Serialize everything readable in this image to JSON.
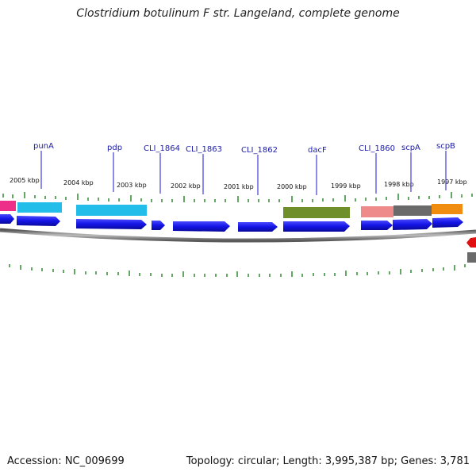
{
  "title": "Clostridium botulinum F str. Langeland, complete genome",
  "footer": {
    "accession": "Accession: NC_009699",
    "summary": "Topology: circular; Length: 3,995,387 bp; Genes: 3,781"
  },
  "colors": {
    "cds": "#1010e0",
    "cds_light": "#2b2bff",
    "tick": "#2e8b2e",
    "backbone": "#888888",
    "label_line": "#1a1ad0"
  },
  "scale_labels": [
    "2005 kbp",
    "2004 kbp",
    "2003 kbp",
    "2002 kbp",
    "2001 kbp",
    "2000 kbp",
    "1999 kbp",
    "1998 kbp",
    "1997 kbp"
  ],
  "gene_labels": [
    "punA",
    "pdp",
    "CLI_1864",
    "CLI_1863",
    "CLI_1862",
    "dacF",
    "CLI_1860",
    "scpA",
    "scpB"
  ],
  "features": [
    {
      "kind": "magenta-feature",
      "color": "#ee2f8a"
    },
    {
      "kind": "cyan-feature",
      "color": "#22bde8"
    },
    {
      "kind": "cyan-feature",
      "color": "#22bde8"
    },
    {
      "kind": "olive-feature",
      "color": "#6f8f2a"
    },
    {
      "kind": "pink-feature",
      "color": "#ef8a8a"
    },
    {
      "kind": "gray-feature",
      "color": "#6a6a6a"
    },
    {
      "kind": "orange-feature",
      "color": "#f08c10"
    }
  ]
}
